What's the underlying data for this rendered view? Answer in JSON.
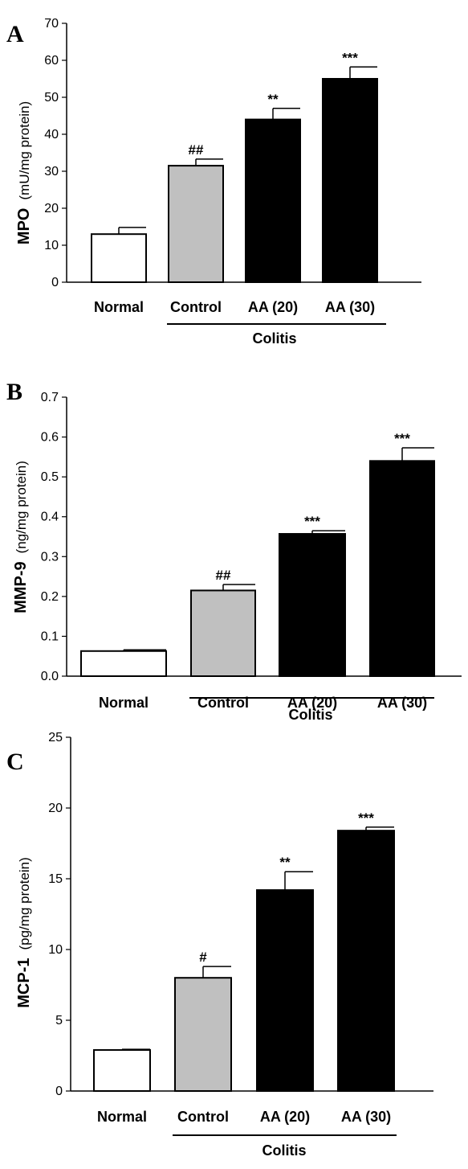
{
  "chart_data": [
    {
      "type": "bar",
      "panel": "A",
      "categories": [
        "Normal",
        "Control",
        "AA (20)",
        "AA (30)"
      ],
      "values": [
        13,
        31.5,
        44,
        55
      ],
      "errors": [
        1.8,
        1.8,
        3.0,
        3.2
      ],
      "annotations": [
        "",
        "##",
        "**",
        "***"
      ],
      "fills": [
        "#ffffff",
        "#c0c0c0",
        "#000000",
        "#000000"
      ],
      "ylabel_bold": "MPO",
      "ylabel_unit": "(mU/mg protein)",
      "ylim": [
        0,
        70
      ],
      "yticks": [
        0,
        10,
        20,
        30,
        40,
        50,
        60,
        70
      ],
      "ytick_labels": [
        "0",
        "10",
        "20",
        "30",
        "40",
        "50",
        "60",
        "70"
      ],
      "group_label": "Colitis",
      "grid": false
    },
    {
      "type": "bar",
      "panel": "B",
      "categories": [
        "Normal",
        "Control",
        "AA (20)",
        "AA (30)"
      ],
      "values": [
        0.063,
        0.215,
        0.357,
        0.54
      ],
      "errors": [
        0.003,
        0.015,
        0.008,
        0.033
      ],
      "annotations": [
        "",
        "##",
        "***",
        "***"
      ],
      "fills": [
        "#ffffff",
        "#c0c0c0",
        "#000000",
        "#000000"
      ],
      "ylabel_bold": "MMP-9",
      "ylabel_unit": "(ng/mg protein)",
      "ylim": [
        0,
        0.7
      ],
      "yticks": [
        0,
        0.1,
        0.2,
        0.3,
        0.4,
        0.5,
        0.6,
        0.7
      ],
      "ytick_labels": [
        "0.0",
        "0.1",
        "0.2",
        "0.3",
        "0.4",
        "0.5",
        "0.6",
        "0.7"
      ],
      "group_label": "Colitis",
      "grid": false
    },
    {
      "type": "bar",
      "panel": "C",
      "categories": [
        "Normal",
        "Control",
        "AA (20)",
        "AA (30)"
      ],
      "values": [
        2.9,
        8.0,
        14.2,
        18.4
      ],
      "errors": [
        0.05,
        0.8,
        1.3,
        0.25
      ],
      "annotations": [
        "",
        "#",
        "**",
        "***"
      ],
      "fills": [
        "#ffffff",
        "#c0c0c0",
        "#000000",
        "#000000"
      ],
      "ylabel_bold": "MCP-1",
      "ylabel_unit": "(pg/mg protein)",
      "ylim": [
        0,
        25
      ],
      "yticks": [
        0,
        5,
        10,
        15,
        20,
        25
      ],
      "ytick_labels": [
        "0",
        "5",
        "10",
        "15",
        "20",
        "25"
      ],
      "group_label": "Colitis",
      "grid": false
    }
  ]
}
